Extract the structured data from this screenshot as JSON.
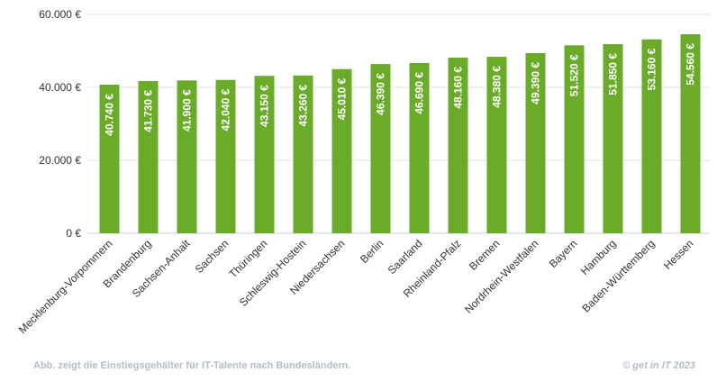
{
  "chart_data": {
    "type": "bar",
    "categories": [
      "Mecklenburg-Vorpommern",
      "Brandenburg",
      "Sachsen-Anhalt",
      "Sachsen",
      "Thüringen",
      "Schleswig-Hostein",
      "Niedersachsen",
      "Berlin",
      "Saarland",
      "Rheinland-Pfalz",
      "Bremen",
      "Nordrhein-Westfalen",
      "Bayern",
      "Hamburg",
      "Baden-Württemberg",
      "Hessen"
    ],
    "values": [
      40740,
      41730,
      41900,
      42040,
      43150,
      43260,
      45010,
      46390,
      46690,
      48160,
      48380,
      49390,
      51520,
      51850,
      53160,
      54560
    ],
    "value_labels": [
      "40.740 €",
      "41.730 €",
      "41.900 €",
      "42.040 €",
      "43.150 €",
      "43.260 €",
      "45.010 €",
      "46.390 €",
      "46.690 €",
      "48.160 €",
      "48.380 €",
      "49.390 €",
      "51.520 €",
      "51.850 €",
      "53.160 €",
      "54.560 €"
    ],
    "ylim": [
      0,
      60000
    ],
    "yticks": [
      0,
      20000,
      40000,
      60000
    ],
    "ytick_labels": [
      "0 €",
      "20.000 €",
      "40.000 €",
      "60.000 €"
    ],
    "grid": true,
    "bar_color": "#6aab2a",
    "grid_color": "#e0e0e0",
    "title": "",
    "xlabel": "",
    "ylabel": ""
  },
  "footer": {
    "caption": "Abb. zeigt die Einstiegsgehälter für IT-Talente nach Bundesländern.",
    "copyright": "© get in IT 2023"
  }
}
